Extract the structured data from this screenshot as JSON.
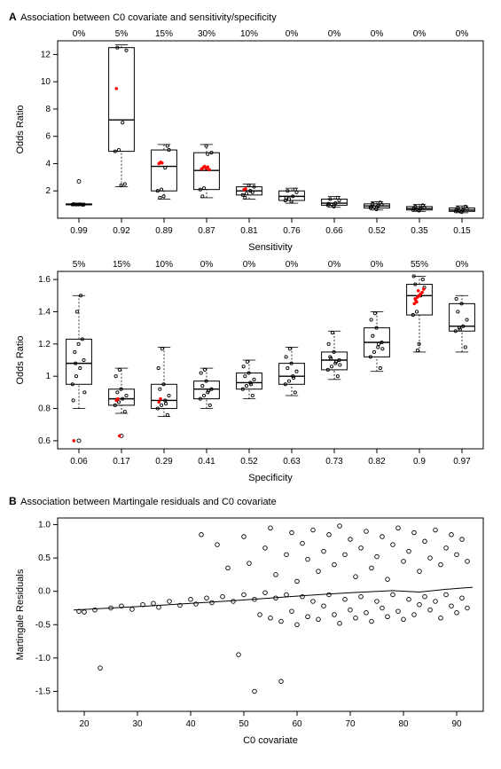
{
  "figure_width": 565,
  "figure_height": 867,
  "background_color": "#ffffff",
  "panelA": {
    "label": "A",
    "subtitle": "Association between C0 covariate and sensitivity/specificity",
    "chart1": {
      "type": "boxplot",
      "ylabel": "Odds Ratio",
      "xlabel": "Sensitivity",
      "label_fontsize": 11,
      "tick_fontsize": 10,
      "ylim": [
        0,
        13
      ],
      "yticks": [
        2,
        4,
        6,
        8,
        10,
        12
      ],
      "categories": [
        "0.99",
        "0.92",
        "0.89",
        "0.87",
        "0.81",
        "0.76",
        "0.66",
        "0.52",
        "0.35",
        "0.15"
      ],
      "top_pct": [
        "0%",
        "5%",
        "15%",
        "30%",
        "10%",
        "0%",
        "0%",
        "0%",
        "0%",
        "0%"
      ],
      "box_width": 0.6,
      "box_color": "#000000",
      "point_color_black": "#000000",
      "point_color_red": "#ff0000",
      "boxes": [
        {
          "q1": 0.98,
          "med": 1.0,
          "q3": 1.05,
          "wlo": 0.95,
          "whi": 1.1,
          "outliers": [
            2.7
          ],
          "red": [],
          "jitter": [
            1.0,
            1.0,
            1.02,
            0.99,
            1.01,
            1.0,
            0.98,
            1.03
          ]
        },
        {
          "q1": 4.9,
          "med": 7.2,
          "q3": 12.5,
          "wlo": 2.3,
          "whi": 12.7,
          "outliers": [],
          "red": [
            9.5
          ],
          "jitter": [
            4.9,
            5.0,
            7.0,
            12.3,
            12.5,
            2.4,
            2.5
          ]
        },
        {
          "q1": 2.0,
          "med": 3.8,
          "q3": 5.0,
          "wlo": 1.4,
          "whi": 5.4,
          "outliers": [],
          "red": [
            4.0,
            4.1,
            4.05
          ],
          "jitter": [
            2.0,
            2.1,
            3.7,
            5.0,
            1.5,
            1.6,
            5.3
          ]
        },
        {
          "q1": 2.1,
          "med": 3.5,
          "q3": 4.8,
          "wlo": 1.5,
          "whi": 5.4,
          "outliers": [],
          "red": [
            3.6,
            3.7,
            3.8,
            3.65,
            3.75,
            3.55
          ],
          "jitter": [
            2.1,
            2.2,
            4.7,
            4.8,
            1.6,
            5.3
          ]
        },
        {
          "q1": 1.7,
          "med": 2.0,
          "q3": 2.3,
          "wlo": 1.4,
          "whi": 2.5,
          "outliers": [],
          "red": [
            2.1,
            2.15
          ],
          "jitter": [
            1.7,
            1.8,
            2.0,
            2.3,
            1.5,
            2.4,
            1.9
          ]
        },
        {
          "q1": 1.3,
          "med": 1.6,
          "q3": 2.0,
          "wlo": 1.1,
          "whi": 2.2,
          "outliers": [],
          "red": [],
          "jitter": [
            1.3,
            1.4,
            1.6,
            1.9,
            2.0,
            1.2,
            2.1,
            1.5
          ]
        },
        {
          "q1": 0.95,
          "med": 1.1,
          "q3": 1.4,
          "wlo": 0.8,
          "whi": 1.6,
          "outliers": [],
          "red": [],
          "jitter": [
            0.95,
            1.0,
            1.1,
            1.3,
            1.4,
            0.85,
            1.5,
            1.05
          ]
        },
        {
          "q1": 0.75,
          "med": 0.9,
          "q3": 1.05,
          "wlo": 0.6,
          "whi": 1.2,
          "outliers": [],
          "red": [],
          "jitter": [
            0.75,
            0.8,
            0.9,
            1.0,
            1.05,
            0.65,
            1.15,
            0.85
          ]
        },
        {
          "q1": 0.6,
          "med": 0.7,
          "q3": 0.85,
          "wlo": 0.5,
          "whi": 1.0,
          "outliers": [],
          "red": [],
          "jitter": [
            0.6,
            0.65,
            0.7,
            0.8,
            0.85,
            0.55,
            0.95,
            0.72
          ]
        },
        {
          "q1": 0.5,
          "med": 0.6,
          "q3": 0.75,
          "wlo": 0.4,
          "whi": 0.9,
          "outliers": [],
          "red": [],
          "jitter": [
            0.5,
            0.55,
            0.6,
            0.7,
            0.75,
            0.45,
            0.85,
            0.62
          ]
        }
      ]
    },
    "chart2": {
      "type": "boxplot",
      "ylabel": "Odds Ratio",
      "xlabel": "Specificity",
      "label_fontsize": 11,
      "tick_fontsize": 10,
      "ylim": [
        0.55,
        1.65
      ],
      "yticks": [
        0.6,
        0.8,
        1.0,
        1.2,
        1.4,
        1.6
      ],
      "categories": [
        "0.06",
        "0.17",
        "0.29",
        "0.41",
        "0.52",
        "0.63",
        "0.73",
        "0.82",
        "0.9",
        "0.97"
      ],
      "top_pct": [
        "5%",
        "15%",
        "10%",
        "0%",
        "0%",
        "0%",
        "0%",
        "0%",
        "55%",
        "0%"
      ],
      "box_width": 0.6,
      "box_color": "#000000",
      "point_color_black": "#000000",
      "point_color_red": "#ff0000",
      "boxes": [
        {
          "q1": 0.95,
          "med": 1.08,
          "q3": 1.23,
          "wlo": 0.8,
          "whi": 1.5,
          "outliers": [
            0.6
          ],
          "red": [
            0.6
          ],
          "jitter": [
            0.95,
            1.0,
            1.05,
            1.1,
            1.15,
            1.2,
            1.23,
            0.85,
            1.4,
            1.5,
            0.9,
            1.08
          ]
        },
        {
          "q1": 0.82,
          "med": 0.86,
          "q3": 0.92,
          "wlo": 0.77,
          "whi": 1.05,
          "outliers": [
            0.63
          ],
          "red": [
            0.85,
            0.86,
            0.63
          ],
          "jitter": [
            0.82,
            0.84,
            0.86,
            0.88,
            0.9,
            0.92,
            0.78,
            1.0,
            1.04
          ]
        },
        {
          "q1": 0.8,
          "med": 0.85,
          "q3": 0.95,
          "wlo": 0.75,
          "whi": 1.18,
          "outliers": [],
          "red": [
            0.84,
            0.86
          ],
          "jitter": [
            0.8,
            0.82,
            0.85,
            0.88,
            0.92,
            0.95,
            0.76,
            1.05,
            1.17,
            0.83
          ]
        },
        {
          "q1": 0.86,
          "med": 0.92,
          "q3": 0.97,
          "wlo": 0.8,
          "whi": 1.05,
          "outliers": [],
          "red": [],
          "jitter": [
            0.86,
            0.88,
            0.9,
            0.92,
            0.94,
            0.97,
            0.82,
            1.02,
            1.04,
            0.91
          ]
        },
        {
          "q1": 0.92,
          "med": 0.96,
          "q3": 1.02,
          "wlo": 0.86,
          "whi": 1.1,
          "outliers": [],
          "red": [],
          "jitter": [
            0.92,
            0.94,
            0.96,
            0.98,
            1.0,
            1.02,
            0.88,
            1.06,
            1.09,
            0.95
          ]
        },
        {
          "q1": 0.95,
          "med": 1.0,
          "q3": 1.08,
          "wlo": 0.88,
          "whi": 1.18,
          "outliers": [],
          "red": [],
          "jitter": [
            0.95,
            0.97,
            1.0,
            1.03,
            1.05,
            1.08,
            0.9,
            1.12,
            1.17,
            0.99
          ]
        },
        {
          "q1": 1.04,
          "med": 1.1,
          "q3": 1.15,
          "wlo": 0.98,
          "whi": 1.28,
          "outliers": [],
          "red": [],
          "jitter": [
            1.04,
            1.06,
            1.08,
            1.1,
            1.12,
            1.15,
            1.0,
            1.2,
            1.27,
            1.09,
            1.07,
            1.11
          ]
        },
        {
          "q1": 1.12,
          "med": 1.21,
          "q3": 1.3,
          "wlo": 1.03,
          "whi": 1.4,
          "outliers": [],
          "red": [],
          "jitter": [
            1.12,
            1.15,
            1.18,
            1.21,
            1.25,
            1.3,
            1.05,
            1.35,
            1.39,
            1.2,
            1.17
          ]
        },
        {
          "q1": 1.38,
          "med": 1.5,
          "q3": 1.57,
          "wlo": 1.15,
          "whi": 1.62,
          "outliers": [],
          "red": [
            1.45,
            1.47,
            1.49,
            1.5,
            1.51,
            1.52,
            1.54,
            1.48,
            1.46,
            1.53,
            1.5
          ],
          "jitter": [
            1.38,
            1.4,
            1.5,
            1.55,
            1.57,
            1.2,
            1.6,
            1.62,
            1.16
          ]
        },
        {
          "q1": 1.28,
          "med": 1.31,
          "q3": 1.45,
          "wlo": 1.15,
          "whi": 1.5,
          "outliers": [],
          "red": [],
          "jitter": [
            1.28,
            1.3,
            1.31,
            1.35,
            1.4,
            1.45,
            1.18,
            1.48,
            1.29
          ]
        }
      ]
    }
  },
  "panelB": {
    "label": "B",
    "subtitle": "Association between Martingale residuals and C0 covariate",
    "chart": {
      "type": "scatter",
      "ylabel": "Martingale Residuals",
      "xlabel": "C0 covariate",
      "label_fontsize": 11,
      "tick_fontsize": 10,
      "xlim": [
        15,
        95
      ],
      "ylim": [
        -1.8,
        1.1
      ],
      "xticks": [
        20,
        30,
        40,
        50,
        60,
        70,
        80,
        90
      ],
      "yticks": [
        -1.5,
        -1.0,
        -0.5,
        0.0,
        0.5,
        1.0
      ],
      "point_radius": 2.3,
      "point_stroke": "#000000",
      "curve_color": "#000000",
      "curve": [
        {
          "x": 18,
          "y": -0.28
        },
        {
          "x": 25,
          "y": -0.25
        },
        {
          "x": 32,
          "y": -0.22
        },
        {
          "x": 40,
          "y": -0.18
        },
        {
          "x": 48,
          "y": -0.14
        },
        {
          "x": 55,
          "y": -0.1
        },
        {
          "x": 62,
          "y": -0.06
        },
        {
          "x": 70,
          "y": -0.02
        },
        {
          "x": 78,
          "y": 0.01
        },
        {
          "x": 83,
          "y": -0.01
        },
        {
          "x": 88,
          "y": 0.03
        },
        {
          "x": 93,
          "y": 0.06
        }
      ],
      "points": [
        {
          "x": 19,
          "y": -0.3
        },
        {
          "x": 20,
          "y": -0.31
        },
        {
          "x": 22,
          "y": -0.28
        },
        {
          "x": 23,
          "y": -1.15
        },
        {
          "x": 25,
          "y": -0.25
        },
        {
          "x": 27,
          "y": -0.22
        },
        {
          "x": 29,
          "y": -0.27
        },
        {
          "x": 31,
          "y": -0.2
        },
        {
          "x": 33,
          "y": -0.18
        },
        {
          "x": 34,
          "y": -0.24
        },
        {
          "x": 36,
          "y": -0.15
        },
        {
          "x": 38,
          "y": -0.21
        },
        {
          "x": 40,
          "y": -0.12
        },
        {
          "x": 41,
          "y": -0.19
        },
        {
          "x": 42,
          "y": 0.85
        },
        {
          "x": 43,
          "y": -0.1
        },
        {
          "x": 44,
          "y": -0.17
        },
        {
          "x": 45,
          "y": 0.7
        },
        {
          "x": 46,
          "y": -0.08
        },
        {
          "x": 47,
          "y": 0.35
        },
        {
          "x": 48,
          "y": -0.15
        },
        {
          "x": 49,
          "y": -0.95
        },
        {
          "x": 50,
          "y": -0.05
        },
        {
          "x": 50,
          "y": 0.82
        },
        {
          "x": 51,
          "y": 0.42
        },
        {
          "x": 52,
          "y": -0.12
        },
        {
          "x": 52,
          "y": -1.5
        },
        {
          "x": 53,
          "y": -0.35
        },
        {
          "x": 54,
          "y": 0.65
        },
        {
          "x": 54,
          "y": -0.02
        },
        {
          "x": 55,
          "y": 0.95
        },
        {
          "x": 55,
          "y": -0.4
        },
        {
          "x": 56,
          "y": -0.1
        },
        {
          "x": 56,
          "y": 0.25
        },
        {
          "x": 57,
          "y": -0.45
        },
        {
          "x": 57,
          "y": -1.35
        },
        {
          "x": 58,
          "y": 0.55
        },
        {
          "x": 58,
          "y": -0.05
        },
        {
          "x": 59,
          "y": 0.88
        },
        {
          "x": 59,
          "y": -0.3
        },
        {
          "x": 60,
          "y": -0.5
        },
        {
          "x": 60,
          "y": 0.15
        },
        {
          "x": 61,
          "y": 0.72
        },
        {
          "x": 61,
          "y": -0.08
        },
        {
          "x": 62,
          "y": -0.38
        },
        {
          "x": 62,
          "y": 0.48
        },
        {
          "x": 63,
          "y": 0.92
        },
        {
          "x": 63,
          "y": -0.15
        },
        {
          "x": 64,
          "y": -0.42
        },
        {
          "x": 64,
          "y": 0.3
        },
        {
          "x": 65,
          "y": 0.6
        },
        {
          "x": 65,
          "y": -0.22
        },
        {
          "x": 66,
          "y": 0.85
        },
        {
          "x": 66,
          "y": -0.05
        },
        {
          "x": 67,
          "y": -0.35
        },
        {
          "x": 67,
          "y": 0.4
        },
        {
          "x": 68,
          "y": 0.98
        },
        {
          "x": 68,
          "y": -0.48
        },
        {
          "x": 69,
          "y": -0.12
        },
        {
          "x": 69,
          "y": 0.55
        },
        {
          "x": 70,
          "y": 0.78
        },
        {
          "x": 70,
          "y": -0.28
        },
        {
          "x": 71,
          "y": -0.4
        },
        {
          "x": 71,
          "y": 0.22
        },
        {
          "x": 72,
          "y": 0.65
        },
        {
          "x": 72,
          "y": -0.08
        },
        {
          "x": 73,
          "y": 0.9
        },
        {
          "x": 73,
          "y": -0.32
        },
        {
          "x": 74,
          "y": -0.45
        },
        {
          "x": 74,
          "y": 0.35
        },
        {
          "x": 75,
          "y": 0.52
        },
        {
          "x": 75,
          "y": -0.15
        },
        {
          "x": 76,
          "y": 0.82
        },
        {
          "x": 76,
          "y": -0.25
        },
        {
          "x": 77,
          "y": -0.38
        },
        {
          "x": 77,
          "y": 0.18
        },
        {
          "x": 78,
          "y": 0.7
        },
        {
          "x": 78,
          "y": -0.05
        },
        {
          "x": 79,
          "y": 0.95
        },
        {
          "x": 79,
          "y": -0.3
        },
        {
          "x": 80,
          "y": -0.42
        },
        {
          "x": 80,
          "y": 0.45
        },
        {
          "x": 81,
          "y": 0.6
        },
        {
          "x": 81,
          "y": -0.12
        },
        {
          "x": 82,
          "y": 0.88
        },
        {
          "x": 82,
          "y": -0.35
        },
        {
          "x": 83,
          "y": -0.2
        },
        {
          "x": 83,
          "y": 0.3
        },
        {
          "x": 84,
          "y": 0.75
        },
        {
          "x": 84,
          "y": -0.08
        },
        {
          "x": 85,
          "y": 0.5
        },
        {
          "x": 85,
          "y": -0.28
        },
        {
          "x": 86,
          "y": 0.92
        },
        {
          "x": 86,
          "y": -0.15
        },
        {
          "x": 87,
          "y": -0.4
        },
        {
          "x": 87,
          "y": 0.4
        },
        {
          "x": 88,
          "y": 0.65
        },
        {
          "x": 88,
          "y": -0.05
        },
        {
          "x": 89,
          "y": 0.85
        },
        {
          "x": 89,
          "y": -0.22
        },
        {
          "x": 90,
          "y": -0.32
        },
        {
          "x": 90,
          "y": 0.55
        },
        {
          "x": 91,
          "y": 0.78
        },
        {
          "x": 91,
          "y": -0.1
        },
        {
          "x": 92,
          "y": 0.45
        },
        {
          "x": 92,
          "y": -0.25
        }
      ]
    }
  }
}
